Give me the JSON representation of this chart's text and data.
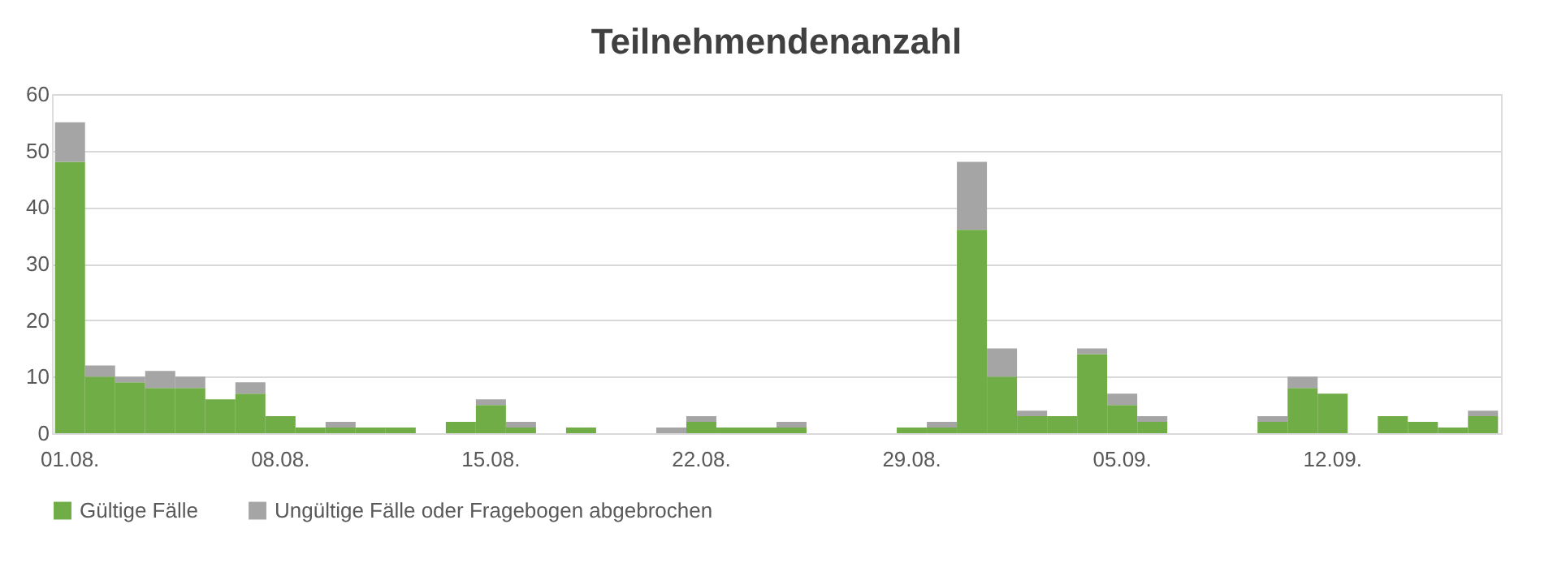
{
  "chart_data": {
    "type": "bar",
    "title": "Teilnehmendenanzahl",
    "stacked": true,
    "categories": [
      "01.08.",
      null,
      null,
      null,
      null,
      null,
      null,
      "08.08.",
      null,
      null,
      null,
      null,
      null,
      null,
      "15.08.",
      null,
      null,
      null,
      null,
      null,
      null,
      "22.08.",
      null,
      null,
      null,
      null,
      null,
      null,
      "29.08.",
      null,
      null,
      null,
      null,
      null,
      null,
      "05.09.",
      null,
      null,
      null,
      null,
      null,
      null,
      "12.09.",
      null,
      null,
      null,
      null,
      null
    ],
    "series": [
      {
        "name": "Gültige Fälle",
        "color": "#70ad47",
        "values": [
          48,
          10,
          9,
          8,
          8,
          6,
          7,
          3,
          1,
          1,
          1,
          1,
          null,
          2,
          5,
          1,
          null,
          1,
          null,
          null,
          null,
          2,
          1,
          1,
          1,
          null,
          null,
          null,
          1,
          1,
          36,
          10,
          3,
          3,
          14,
          5,
          2,
          null,
          null,
          null,
          2,
          8,
          7,
          null,
          3,
          2,
          1,
          3
        ]
      },
      {
        "name": "Ungültige Fälle oder Fragebogen abgebrochen",
        "color": "#a5a5a5",
        "values": [
          7,
          2,
          1,
          3,
          2,
          null,
          2,
          null,
          null,
          1,
          null,
          null,
          null,
          null,
          1,
          1,
          null,
          null,
          null,
          null,
          1,
          1,
          null,
          null,
          1,
          null,
          null,
          null,
          null,
          1,
          12,
          5,
          1,
          null,
          1,
          2,
          1,
          null,
          null,
          null,
          1,
          2,
          null,
          null,
          null,
          null,
          null,
          1
        ]
      }
    ],
    "ylim": [
      0,
      60
    ],
    "yticks": [
      0,
      10,
      20,
      30,
      40,
      50,
      60
    ],
    "grid": "y",
    "legend": "bottom"
  }
}
